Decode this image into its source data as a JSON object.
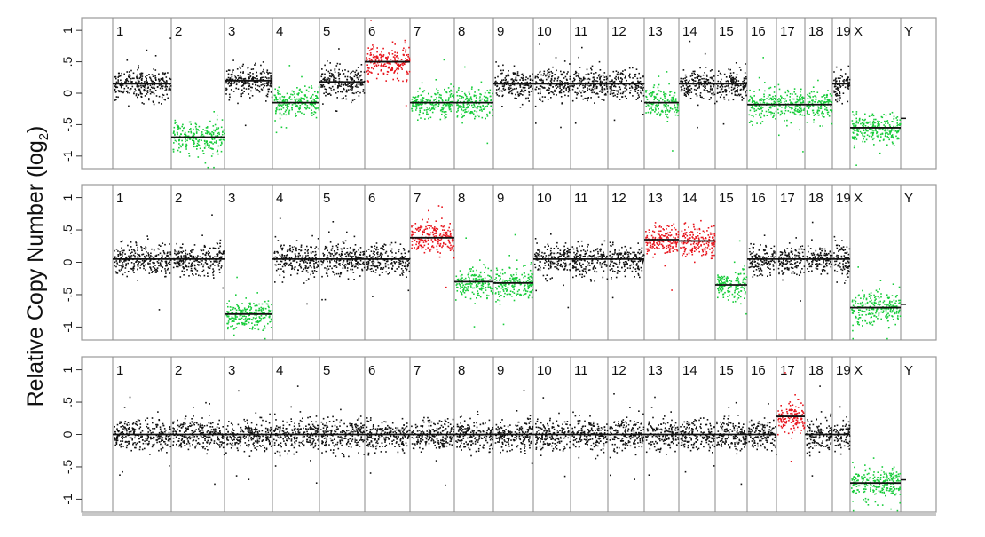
{
  "ylabel": "Relative Copy Number (log",
  "ylabel_sub": "2",
  "ylabel_close": ")",
  "chart_data": [
    {
      "type": "scatter",
      "title": "",
      "ylabel": "Relative Copy Number (log2)",
      "ylim": [
        -1.2,
        1.2
      ],
      "yticks": [
        1,
        0.5,
        0,
        -0.5,
        -1
      ],
      "ytick_labels": [
        "1",
        ".5",
        "0",
        "-.5",
        "-1"
      ],
      "grid": false,
      "chromosomes": [
        "1",
        "2",
        "3",
        "4",
        "5",
        "6",
        "7",
        "8",
        "9",
        "10",
        "11",
        "12",
        "13",
        "14",
        "15",
        "16",
        "17",
        "18",
        "19",
        "X",
        "Y"
      ],
      "segment_means": [
        0.15,
        -0.7,
        0.2,
        -0.15,
        0.18,
        0.5,
        -0.15,
        -0.15,
        0.15,
        0.15,
        0.15,
        0.15,
        -0.15,
        0.15,
        0.15,
        -0.18,
        -0.18,
        -0.18,
        0.15,
        -0.55,
        -0.4
      ],
      "segment_status": [
        "normal",
        "loss",
        "normal",
        "loss",
        "normal",
        "gain",
        "loss",
        "loss",
        "normal",
        "normal",
        "normal",
        "normal",
        "loss",
        "normal",
        "normal",
        "loss",
        "loss",
        "loss",
        "normal",
        "loss",
        "none"
      ]
    },
    {
      "type": "scatter",
      "title": "",
      "ylabel": "Relative Copy Number (log2)",
      "ylim": [
        -1.2,
        1.2
      ],
      "yticks": [
        1,
        0.5,
        0,
        -0.5,
        -1
      ],
      "ytick_labels": [
        "1",
        ".5",
        "0",
        "-.5",
        "-1"
      ],
      "grid": false,
      "chromosomes": [
        "1",
        "2",
        "3",
        "4",
        "5",
        "6",
        "7",
        "8",
        "9",
        "10",
        "11",
        "12",
        "13",
        "14",
        "15",
        "16",
        "17",
        "18",
        "19",
        "X",
        "Y"
      ],
      "segment_means": [
        0.05,
        0.05,
        -0.8,
        0.05,
        0.05,
        0.05,
        0.38,
        -0.3,
        -0.32,
        0.05,
        0.05,
        0.05,
        0.35,
        0.33,
        -0.35,
        0.05,
        0.05,
        0.05,
        0.05,
        -0.7,
        -0.65
      ],
      "segment_status": [
        "normal",
        "normal",
        "loss",
        "normal",
        "normal",
        "normal",
        "gain",
        "loss",
        "loss",
        "normal",
        "normal",
        "normal",
        "gain",
        "gain",
        "loss",
        "normal",
        "normal",
        "normal",
        "normal",
        "loss",
        "none"
      ]
    },
    {
      "type": "scatter",
      "title": "",
      "ylabel": "Relative Copy Number (log2)",
      "ylim": [
        -1.2,
        1.2
      ],
      "yticks": [
        1,
        0.5,
        0,
        -0.5,
        -1
      ],
      "ytick_labels": [
        "1",
        ".5",
        "0",
        "-.5",
        "-1"
      ],
      "grid": false,
      "chromosomes": [
        "1",
        "2",
        "3",
        "4",
        "5",
        "6",
        "7",
        "8",
        "9",
        "10",
        "11",
        "12",
        "13",
        "14",
        "15",
        "16",
        "17",
        "18",
        "19",
        "X",
        "Y"
      ],
      "segment_means": [
        0.0,
        0.0,
        0.0,
        0.0,
        0.0,
        0.0,
        0.0,
        0.0,
        0.0,
        0.0,
        0.0,
        0.0,
        0.0,
        0.0,
        0.0,
        0.0,
        0.28,
        0.0,
        0.0,
        -0.75,
        -0.7
      ],
      "segment_status": [
        "normal",
        "normal",
        "normal",
        "normal",
        "normal",
        "normal",
        "normal",
        "normal",
        "normal",
        "normal",
        "normal",
        "normal",
        "normal",
        "normal",
        "normal",
        "normal",
        "gain",
        "normal",
        "normal",
        "loss",
        "none"
      ]
    }
  ],
  "colors": {
    "normal": "#111111",
    "gain": "#e8141c",
    "loss": "#17cc3a",
    "segment": "#111111",
    "frame": "#9a9a9a",
    "divider": "#8a8a8a"
  }
}
